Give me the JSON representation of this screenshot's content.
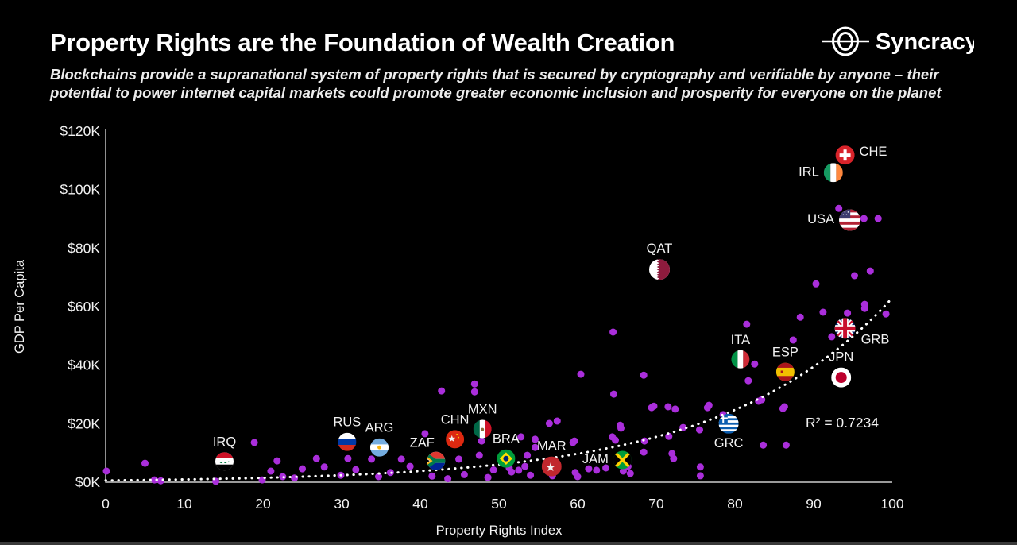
{
  "header": {
    "title": "Property Rights are the Foundation of Wealth Creation",
    "subtitle_line1": "Blockchains provide a supranational system of property rights that is secured by cryptography and verifiable by anyone – their",
    "subtitle_line2": "potential to power internet capital markets could promote greater economic inclusion and prosperity for everyone on the planet",
    "logo_text": "Syncracy"
  },
  "chart_data": {
    "type": "scatter",
    "xlabel": "Property Rights Index",
    "ylabel": "GDP Per Capita",
    "xlim": [
      0,
      100
    ],
    "ylim_gdp_thousands": [
      0,
      120
    ],
    "x_ticks": [
      0,
      10,
      20,
      30,
      40,
      50,
      60,
      70,
      80,
      90,
      100
    ],
    "y_ticks": [
      {
        "label": "$0K",
        "value": 0
      },
      {
        "label": "$20K",
        "value": 20
      },
      {
        "label": "$40K",
        "value": 40
      },
      {
        "label": "$60K",
        "value": 60
      },
      {
        "label": "$80K",
        "value": 80
      },
      {
        "label": "$100K",
        "value": 100
      },
      {
        "label": "$120K",
        "value": 120
      }
    ],
    "r_squared": 0.7234,
    "r_squared_label": "R² = 0.7234",
    "trendline": {
      "type": "exponential",
      "a_thousands": 0.59,
      "b": 0.0467,
      "style": "dotted-white"
    },
    "colors": {
      "background": "#000000",
      "point": "#AA2EDB",
      "trendline": "#FFFFFF",
      "axis": "#CDCDCD",
      "text": "#F2F2F2"
    },
    "labeled_countries": [
      {
        "code": "IRQ",
        "label": "IRQ",
        "pri": 15.1,
        "gdp_thousands": 7.1,
        "label_pos": "above"
      },
      {
        "code": "RUS",
        "label": "RUS",
        "pri": 30.7,
        "gdp_thousands": 13.8,
        "label_pos": "above"
      },
      {
        "code": "ARG",
        "label": "ARG",
        "pri": 34.8,
        "gdp_thousands": 11.9,
        "label_pos": "above"
      },
      {
        "code": "ZAF",
        "label": "ZAF",
        "pri": 42.0,
        "gdp_thousands": 7.3,
        "label_pos": "above-left"
      },
      {
        "code": "CHN",
        "label": "CHN",
        "pri": 44.4,
        "gdp_thousands": 14.7,
        "label_pos": "above"
      },
      {
        "code": "MXN",
        "label": "MXN",
        "pri": 47.9,
        "gdp_thousands": 18.2,
        "label_pos": "above"
      },
      {
        "code": "BRA",
        "label": "BRA",
        "pri": 50.9,
        "gdp_thousands": 8.1,
        "label_pos": "above"
      },
      {
        "code": "MAR",
        "label": "MAR",
        "pri": 56.7,
        "gdp_thousands": 5.4,
        "label_pos": "above"
      },
      {
        "code": "JAM",
        "label": "JAM",
        "pri": 65.7,
        "gdp_thousands": 7.6,
        "label_pos": "left"
      },
      {
        "code": "QAT",
        "label": "QAT",
        "pri": 70.4,
        "gdp_thousands": 72.7,
        "label_pos": "above"
      },
      {
        "code": "GRC",
        "label": "GRC",
        "pri": 79.2,
        "gdp_thousands": 20.0,
        "label_pos": "below"
      },
      {
        "code": "ITA",
        "label": "ITA",
        "pri": 80.7,
        "gdp_thousands": 42.0,
        "label_pos": "above"
      },
      {
        "code": "ESP",
        "label": "ESP",
        "pri": 86.4,
        "gdp_thousands": 37.7,
        "label_pos": "above"
      },
      {
        "code": "JPN",
        "label": "JPN",
        "pri": 93.5,
        "gdp_thousands": 35.8,
        "label_pos": "above"
      },
      {
        "code": "GRB",
        "label": "GRB",
        "pri": 94.0,
        "gdp_thousands": 52.6,
        "label_pos": "below-right"
      },
      {
        "code": "USA",
        "label": "USA",
        "pri": 94.6,
        "gdp_thousands": 89.6,
        "label_pos": "left"
      },
      {
        "code": "IRL",
        "label": "IRL",
        "pri": 92.5,
        "gdp_thousands": 105.8,
        "label_pos": "left"
      },
      {
        "code": "CHE",
        "label": "CHE",
        "pri": 94.0,
        "gdp_thousands": 111.8,
        "label_pos": "right"
      }
    ],
    "points": [
      [
        0.1,
        3.8
      ],
      [
        5,
        6.5
      ],
      [
        6.2,
        0.8
      ],
      [
        7,
        0.5
      ],
      [
        14,
        0.3
      ],
      [
        18.9,
        13.6
      ],
      [
        19.9,
        0.8
      ],
      [
        21,
        3.8
      ],
      [
        21.8,
        7.3
      ],
      [
        22.5,
        1.9
      ],
      [
        24,
        1.4
      ],
      [
        25,
        4.6
      ],
      [
        26.8,
        8.1
      ],
      [
        27.8,
        5.2
      ],
      [
        29.9,
        2.4
      ],
      [
        30.8,
        8.1
      ],
      [
        31.8,
        4.3
      ],
      [
        33.8,
        7.9
      ],
      [
        34.7,
        1.9
      ],
      [
        36.2,
        3.3
      ],
      [
        37.6,
        7.9
      ],
      [
        38.7,
        5.4
      ],
      [
        40.6,
        16.6
      ],
      [
        41.5,
        2.1
      ],
      [
        42.7,
        31.2
      ],
      [
        43.5,
        1.2
      ],
      [
        44.9,
        7.9
      ],
      [
        45.6,
        2.6
      ],
      [
        46.9,
        33.6
      ],
      [
        46.9,
        30.9
      ],
      [
        47.5,
        9.2
      ],
      [
        47.8,
        14.1
      ],
      [
        48.6,
        1.6
      ],
      [
        49.3,
        4.2
      ],
      [
        51.3,
        4.9
      ],
      [
        51.6,
        3.5
      ],
      [
        52.5,
        4.1
      ],
      [
        52.8,
        15.5
      ],
      [
        53.3,
        5.4
      ],
      [
        53.6,
        9.2
      ],
      [
        54,
        2.4
      ],
      [
        54.6,
        14.7
      ],
      [
        54.6,
        11.9
      ],
      [
        56.4,
        20.1
      ],
      [
        56.8,
        2.2
      ],
      [
        57.4,
        20.9
      ],
      [
        59.4,
        13.6
      ],
      [
        59.6,
        14.1
      ],
      [
        59.7,
        3.3
      ],
      [
        60,
        1.9
      ],
      [
        60.4,
        36.9
      ],
      [
        61.4,
        4.6
      ],
      [
        62.4,
        4.1
      ],
      [
        63.6,
        4.9
      ],
      [
        64.4,
        15.5
      ],
      [
        64.5,
        51.3
      ],
      [
        64.6,
        30.1
      ],
      [
        64.8,
        14.4
      ],
      [
        65.4,
        19.5
      ],
      [
        65.5,
        18.5
      ],
      [
        65.8,
        3.8
      ],
      [
        66.4,
        5.4
      ],
      [
        66.7,
        3
      ],
      [
        68.4,
        36.6
      ],
      [
        68.5,
        14.1
      ],
      [
        68.4,
        10.3
      ],
      [
        69.4,
        25.5
      ],
      [
        69.7,
        26
      ],
      [
        71.5,
        25.8
      ],
      [
        71.6,
        15.7
      ],
      [
        72,
        9.8
      ],
      [
        72.2,
        8.1
      ],
      [
        72.4,
        25
      ],
      [
        73.4,
        18.7
      ],
      [
        75.5,
        17.9
      ],
      [
        75.6,
        5.2
      ],
      [
        75.6,
        2.2
      ],
      [
        76.5,
        25.5
      ],
      [
        76.7,
        26.3
      ],
      [
        78.5,
        23.1
      ],
      [
        81.5,
        54
      ],
      [
        81.7,
        34.7
      ],
      [
        82.5,
        40.4
      ],
      [
        83,
        27.7
      ],
      [
        83.4,
        28.2
      ],
      [
        83.6,
        12.7
      ],
      [
        86.1,
        25.2
      ],
      [
        86.3,
        25.8
      ],
      [
        86.5,
        12.7
      ],
      [
        87.4,
        48.6
      ],
      [
        88.3,
        56.4
      ],
      [
        90.3,
        67.8
      ],
      [
        91.2,
        58.1
      ],
      [
        92.3,
        49.7
      ],
      [
        93.2,
        93.6
      ],
      [
        94.3,
        57.8
      ],
      [
        95.2,
        70.6
      ],
      [
        96.4,
        90.1
      ],
      [
        96.5,
        60.8
      ],
      [
        96.5,
        59.4
      ],
      [
        97.2,
        72.2
      ],
      [
        98.2,
        90.1
      ],
      [
        99.2,
        57.5
      ]
    ]
  }
}
